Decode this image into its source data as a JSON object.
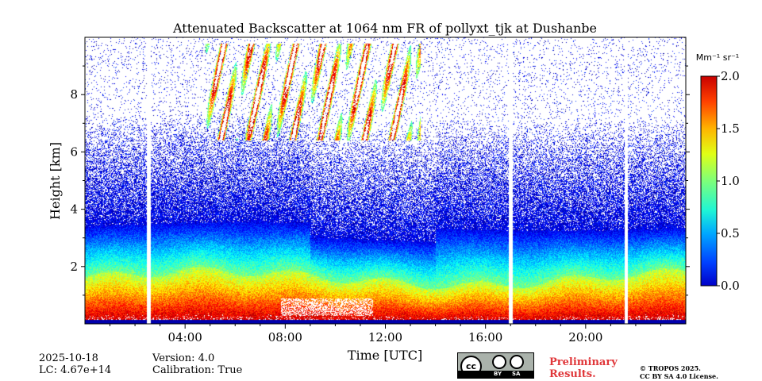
{
  "chart_data": {
    "type": "heatmap",
    "title": "Attenuated Backscatter at 1064 nm FR of pollyxt_tjk at Dushanbe",
    "xlabel": "Time [UTC]",
    "ylabel": "Height [km]",
    "xlim": [
      0,
      24
    ],
    "ylim": [
      0,
      10
    ],
    "x_ticks": [
      "04:00",
      "08:00",
      "12:00",
      "16:00",
      "20:00"
    ],
    "x_tick_values": [
      4,
      8,
      12,
      16,
      20
    ],
    "y_ticks": [
      "2",
      "4",
      "6",
      "8"
    ],
    "y_tick_values": [
      2,
      4,
      6,
      8
    ],
    "colorbar": {
      "label": "Mm⁻¹ sr⁻¹",
      "range": [
        0.0,
        2.0
      ],
      "ticks": [
        "0.0",
        "0.5",
        "1.0",
        "1.5",
        "2.0"
      ],
      "tick_values": [
        0.0,
        0.5,
        1.0,
        1.5,
        2.0
      ],
      "colormap": "jet",
      "over_color": "#ffffff"
    },
    "data_gaps_utc": [
      [
        2.45,
        2.6
      ],
      [
        16.92,
        17.08
      ],
      [
        21.55,
        21.68
      ]
    ],
    "layers": [
      {
        "feature": "aerosol boundary layer",
        "height_km": [
          0.0,
          1.8
        ],
        "time_utc": [
          0,
          24
        ],
        "backscatter": [
          1.3,
          2.0
        ]
      },
      {
        "feature": "residual aerosol layer",
        "height_km": [
          1.8,
          3.6
        ],
        "time_utc": [
          0,
          24
        ],
        "backscatter": [
          0.4,
          1.2
        ]
      },
      {
        "feature": "noise region",
        "height_km": [
          3.6,
          10.0
        ],
        "time_utc": [
          0,
          24
        ],
        "backscatter": [
          0.0,
          0.4
        ]
      },
      {
        "feature": "cirrus cloud",
        "height_km": [
          6.4,
          9.8
        ],
        "time_utc": [
          4.8,
          13.4
        ],
        "backscatter": [
          0.5,
          2.0
        ]
      },
      {
        "feature": "low cloud / saturation",
        "height_km": [
          0.3,
          0.9
        ],
        "time_utc": [
          7.8,
          11.5
        ],
        "backscatter": [
          2.0,
          2.0
        ]
      }
    ]
  },
  "footer": {
    "date": "2025-10-18",
    "lc": "LC: 4.67e+14",
    "version": "Version: 4.0",
    "calibration": "Calibration: True",
    "preliminary_line1": "Preliminary",
    "preliminary_line2": "Results.",
    "copyright_line1": "© TROPOS 2025.",
    "copyright_line2": "CC BY SA 4.0 License.",
    "license_badge": {
      "cc": "cc",
      "by": "BY",
      "sa": "SA"
    }
  }
}
